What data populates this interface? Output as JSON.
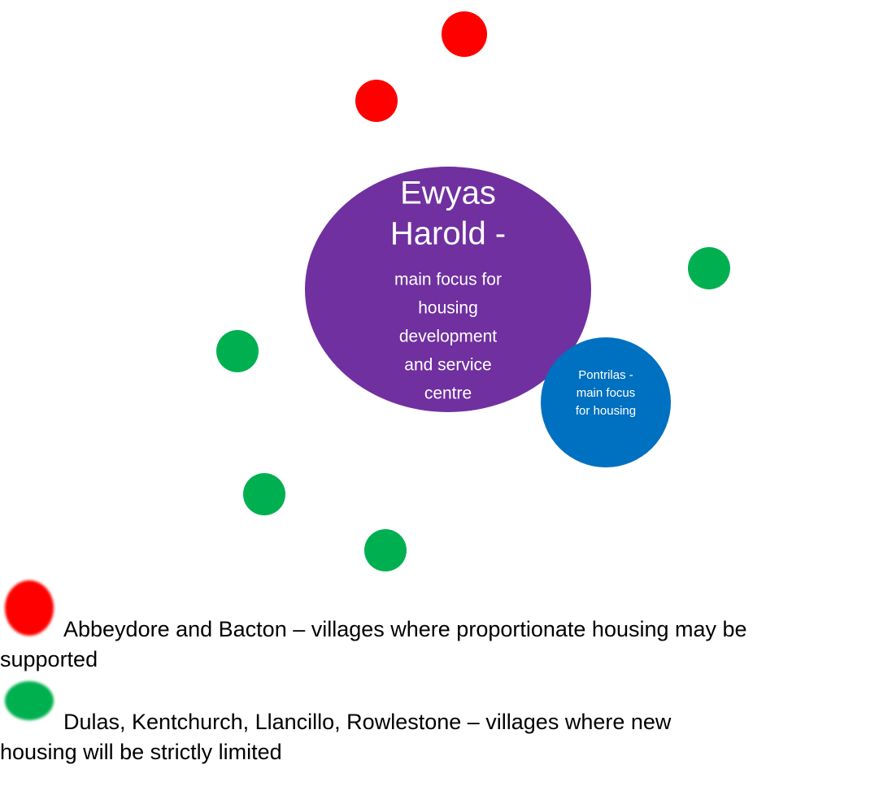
{
  "main_node": {
    "lines": [
      "Ewyas",
      "Harold -",
      "main focus for",
      "housing",
      "development",
      "and service",
      "centre"
    ],
    "color": "#7030a0"
  },
  "secondary_node": {
    "lines": [
      "Pontrilas -",
      "main focus",
      "for housing"
    ],
    "color": "#0070c0"
  },
  "legend": [
    {
      "color": "#ff0000",
      "lines": [
        "Abbeydore and Bacton – villages where proportionate housing may be",
        "supported"
      ]
    },
    {
      "color": "#00b050",
      "lines": [
        "Dulas, Kentchurch, Llancillo, Rowlestone – villages where new",
        "housing will be strictly limited"
      ]
    }
  ]
}
